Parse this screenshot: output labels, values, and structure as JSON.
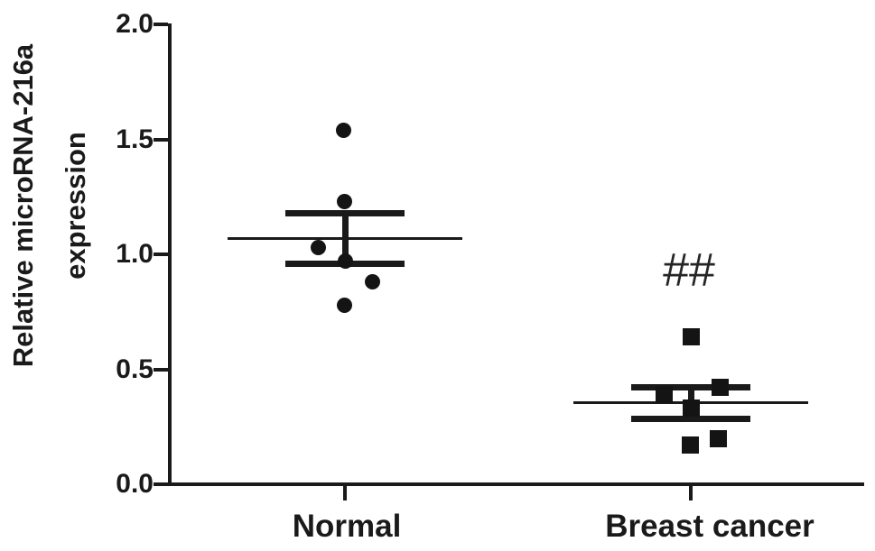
{
  "figure": {
    "background": "#ffffff",
    "ink": "#1a1a1a"
  },
  "chart_data": {
    "type": "scatter",
    "subtype": "column-scatter-dot-plot-with-mean-sem",
    "title": "",
    "ylabel": "Relative microRNA-216a expression",
    "ylabel_lines": [
      "Relative microRNA-216a",
      "expression"
    ],
    "xlabel": "",
    "ylim": [
      0.0,
      2.0
    ],
    "grid": "off",
    "legend": "none",
    "yticks": [
      {
        "value": 0.0,
        "label": "0.0"
      },
      {
        "value": 0.5,
        "label": "0.5"
      },
      {
        "value": 1.0,
        "label": "1.0"
      },
      {
        "value": 1.5,
        "label": "1.5"
      },
      {
        "value": 2.0,
        "label": "2.0"
      }
    ],
    "categories": [
      "Normal",
      "Breast cancer"
    ],
    "groups": [
      {
        "label": "Normal",
        "marker": "circle",
        "mean": 1.07,
        "sem_upper": 1.18,
        "sem_lower": 0.96,
        "annotation": "",
        "points": [
          {
            "value": 1.54,
            "dx": -2
          },
          {
            "value": 1.23,
            "dx": -1
          },
          {
            "value": 1.03,
            "dx": -30
          },
          {
            "value": 0.97,
            "dx": 0
          },
          {
            "value": 0.88,
            "dx": 30
          },
          {
            "value": 0.78,
            "dx": -1
          }
        ]
      },
      {
        "label": "Breast cancer",
        "marker": "square",
        "mean": 0.355,
        "sem_upper": 0.42,
        "sem_lower": 0.285,
        "annotation": "##",
        "annotation_y": 0.93,
        "points": [
          {
            "value": 0.64,
            "dx": 0
          },
          {
            "value": 0.42,
            "dx": 32
          },
          {
            "value": 0.39,
            "dx": -30
          },
          {
            "value": 0.33,
            "dx": 0
          },
          {
            "value": 0.2,
            "dx": 30
          },
          {
            "value": 0.17,
            "dx": -1
          }
        ]
      }
    ]
  }
}
